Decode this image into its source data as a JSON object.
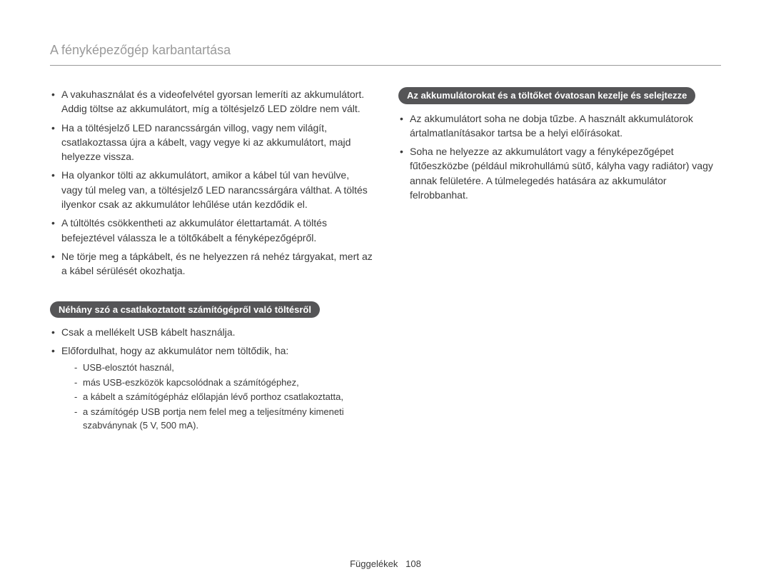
{
  "heading": "A fényképezőgép karbantartása",
  "left": {
    "bullets1": [
      "A vakuhasználat és a videofelvétel gyorsan lemeríti az akkumulátort. Addig töltse az akkumulátort, míg a töltésjelző LED zöldre nem vált.",
      "Ha a töltésjelző LED narancssárgán villog, vagy nem világít, csatlakoztassa újra a kábelt, vagy vegye ki az akkumulátort, majd helyezze vissza.",
      "Ha olyankor tölti az akkumulátort, amikor a kábel túl van hevülve, vagy túl meleg van, a töltésjelző LED narancssárgára válthat. A töltés ilyenkor csak az akkumulátor lehűlése után kezdődik el.",
      "A túltöltés csökkentheti az akkumulátor élettartamát. A töltés befejeztével válassza le a töltőkábelt a fényképezőgépről.",
      "Ne törje meg a tápkábelt, és ne helyezzen rá nehéz tárgyakat, mert az a kábel sérülését okozhatja."
    ],
    "pill": "Néhány szó a csatlakoztatott számítógépről való töltésről",
    "bullets2": [
      "Csak a mellékelt USB kábelt használja.",
      "Előfordulhat, hogy az akkumulátor nem töltődik, ha:"
    ],
    "dashes": [
      "USB-elosztót használ,",
      "más USB-eszközök kapcsolódnak a számítógéphez,",
      "a kábelt a számítógépház előlapján lévő porthoz csatlakoztatta,",
      "a számítógép USB portja nem felel meg a teljesítmény kimeneti szabványnak (5 V, 500 mA)."
    ]
  },
  "right": {
    "pill": "Az akkumulátorokat és a töltőket óvatosan kezelje és selejtezze",
    "bullets": [
      "Az akkumulátort soha ne dobja tűzbe. A használt akkumulátorok ártalmatlanításakor tartsa be a helyi előírásokat.",
      "Soha ne helyezze az akkumulátort vagy a fényképezőgépet fűtőeszközbe (például mikrohullámú sütő, kályha vagy radiátor) vagy annak felületére. A túlmelegedés hatására az akkumulátor felrobbanhat."
    ]
  },
  "footer": {
    "label": "Függelékek",
    "page": "108"
  },
  "colors": {
    "text": "#3a3a3a",
    "heading": "#9a9a9a",
    "rule": "#9a9a9a",
    "pill_bg": "#555557",
    "pill_fg": "#ffffff",
    "background": "#ffffff"
  },
  "typography": {
    "heading_fontsize": 18,
    "body_fontsize": 14,
    "sub_fontsize": 13,
    "pill_fontsize": 13,
    "footer_fontsize": 13
  }
}
